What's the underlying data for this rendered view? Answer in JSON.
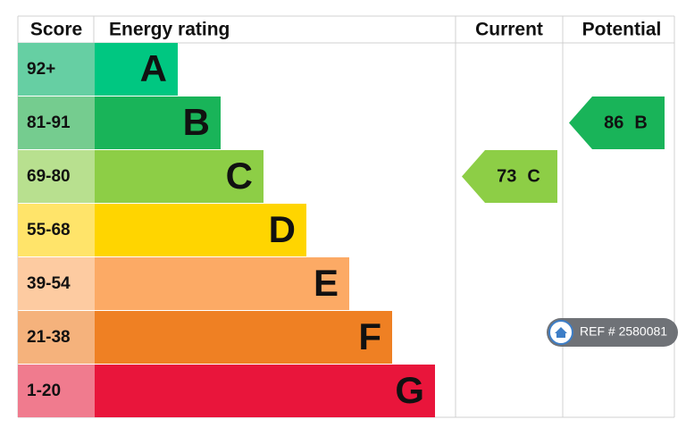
{
  "header": {
    "score": "Score",
    "rating": "Energy rating",
    "current": "Current",
    "potential": "Potential"
  },
  "bands": [
    {
      "score": "92+",
      "letter": "A",
      "color": "#00c781",
      "tint": "#66cfa3"
    },
    {
      "score": "81-91",
      "letter": "B",
      "color": "#19b459",
      "tint": "#75cc8f"
    },
    {
      "score": "69-80",
      "letter": "C",
      "color": "#8dce46",
      "tint": "#b8e08f"
    },
    {
      "score": "55-68",
      "letter": "D",
      "color": "#ffd500",
      "tint": "#ffe46a"
    },
    {
      "score": "39-54",
      "letter": "E",
      "color": "#fcaa65",
      "tint": "#fdcba1"
    },
    {
      "score": "21-38",
      "letter": "F",
      "color": "#ef8023",
      "tint": "#f5b27c"
    },
    {
      "score": "1-20",
      "letter": "G",
      "color": "#e9153b",
      "tint": "#f07b8e"
    }
  ],
  "current": {
    "value": 73,
    "letter": "C",
    "color": "#8dce46"
  },
  "potential": {
    "value": 86,
    "letter": "B",
    "color": "#19b459"
  },
  "reference": "REF # 2580081"
}
